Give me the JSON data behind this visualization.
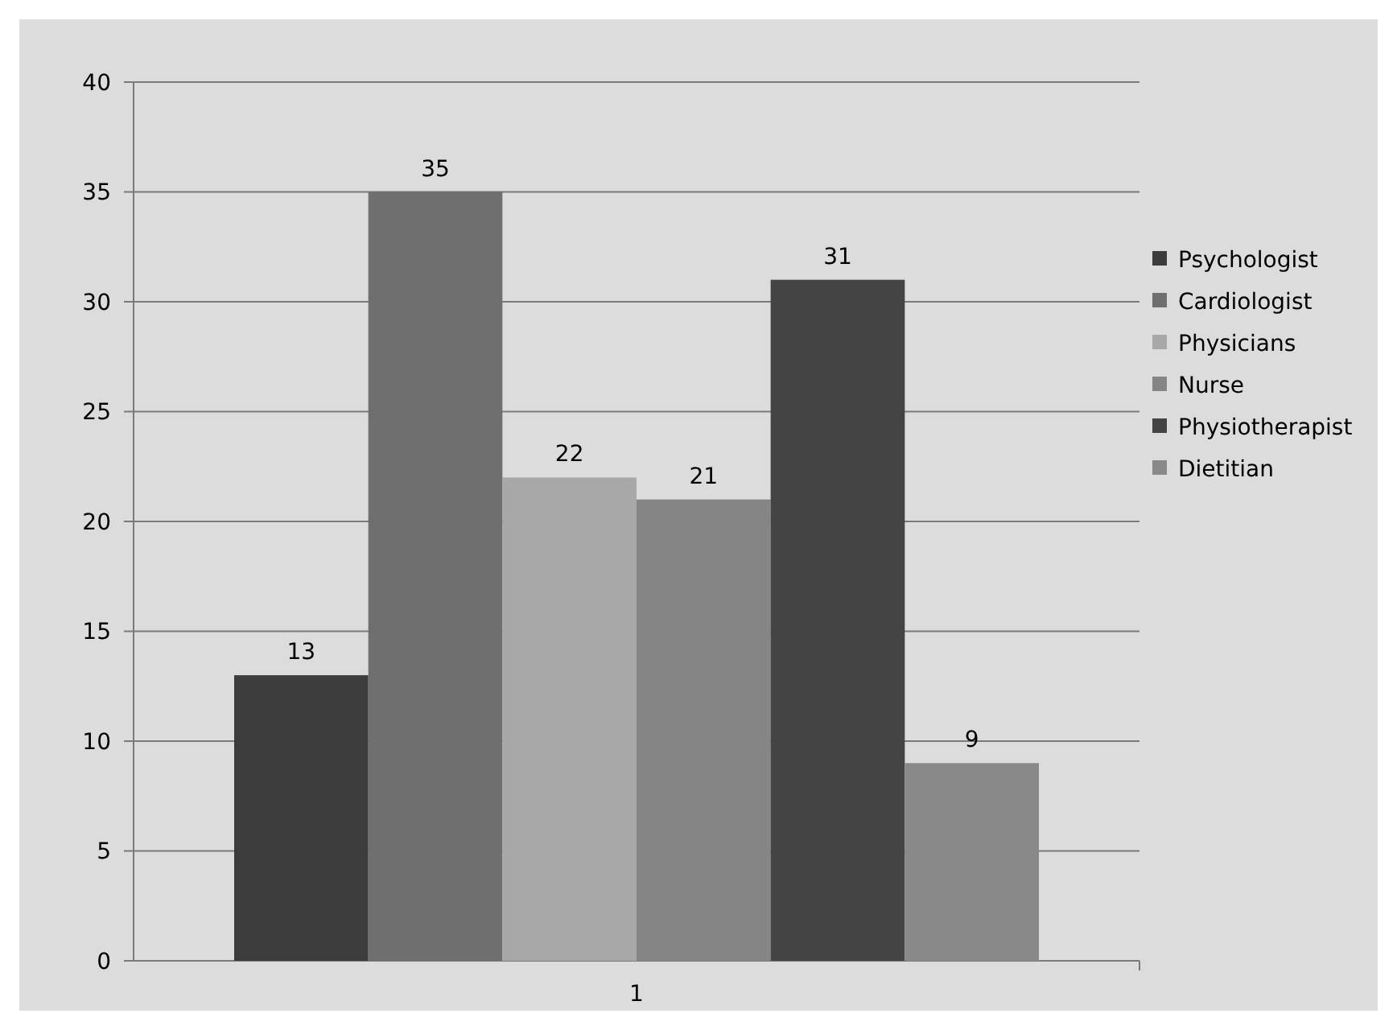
{
  "chart_data": {
    "type": "bar",
    "categories": [
      "1"
    ],
    "series": [
      {
        "name": "Psychologist",
        "color": "#3c3c3c",
        "values": [
          13
        ]
      },
      {
        "name": "Cardiologist",
        "color": "#6f6f6f",
        "values": [
          35
        ]
      },
      {
        "name": "Physicians",
        "color": "#a8a8a8",
        "values": [
          22
        ]
      },
      {
        "name": "Nurse",
        "color": "#858585",
        "values": [
          21
        ]
      },
      {
        "name": "Physiotherapist",
        "color": "#444444",
        "values": [
          31
        ]
      },
      {
        "name": "Dietitian",
        "color": "#898989",
        "values": [
          9
        ]
      }
    ],
    "ylim": [
      0,
      40
    ],
    "yticks": [
      0,
      5,
      10,
      15,
      20,
      25,
      30,
      35,
      40
    ],
    "grid": "y",
    "legend": "right",
    "data_labels": true
  }
}
